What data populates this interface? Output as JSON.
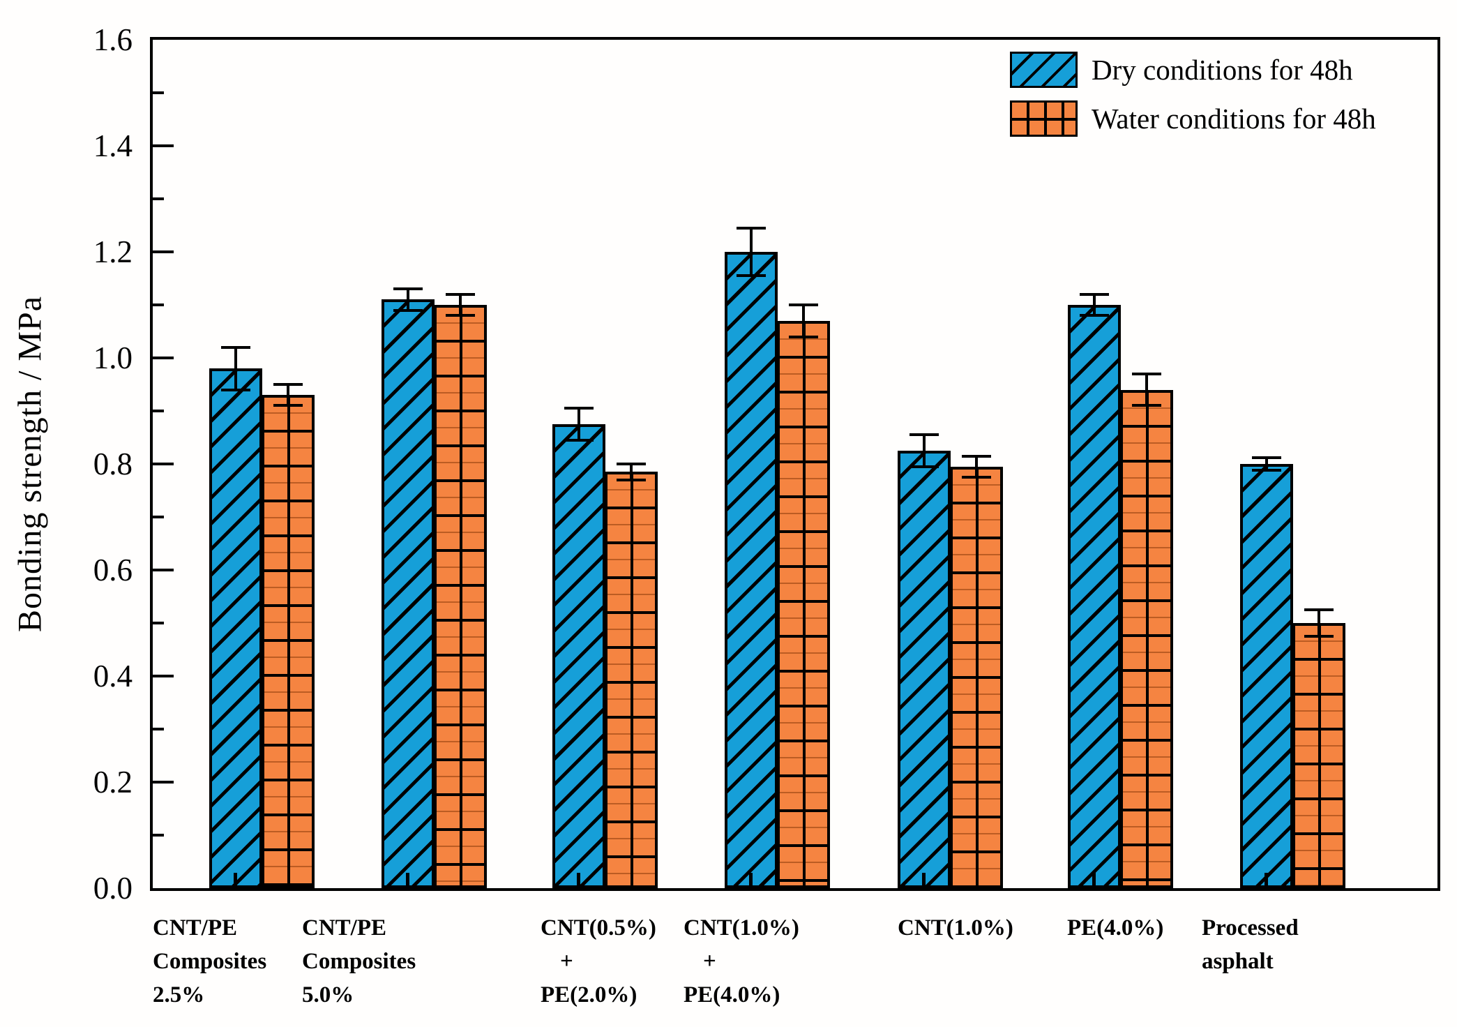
{
  "figure": {
    "ylabel": "Bonding strength / MPa",
    "background": "#ffffff",
    "axis_color": "#000000"
  },
  "chart_data": {
    "type": "bar",
    "title": "",
    "xlabel": "",
    "ylabel": "Bonding strength / MPa",
    "ylim": [
      0,
      1.6
    ],
    "ytick_interval": 0.2,
    "minor_tick_interval": 0.1,
    "yticks": [
      "0.0",
      "0.2",
      "0.4",
      "0.6",
      "0.8",
      "1.0",
      "1.2",
      "1.4",
      "1.6"
    ],
    "grid": false,
    "legend_position": "upper right",
    "error_bars": true,
    "categories": [
      [
        "CNT/PE",
        "Composites",
        "2.5%"
      ],
      [
        "CNT/PE",
        "Composites",
        "5.0%"
      ],
      [
        "CNT(0.5%)",
        "+",
        "PE(2.0%)"
      ],
      [
        "CNT(1.0%)",
        "+",
        "PE(4.0%)"
      ],
      [
        "CNT(1.0%)"
      ],
      [
        "PE(4.0%)"
      ],
      [
        "Processed",
        "asphalt"
      ]
    ],
    "series": [
      {
        "name": "Dry conditions for 48h",
        "color": "#169fd8",
        "hatch": "diagonal",
        "values": [
          0.98,
          1.11,
          0.875,
          1.2,
          0.825,
          1.1,
          0.8
        ],
        "errors": [
          0.04,
          0.02,
          0.03,
          0.045,
          0.03,
          0.02,
          0.012
        ]
      },
      {
        "name": "Water conditions for 48h",
        "color": "#f58441",
        "hatch": "grid",
        "values": [
          0.93,
          1.1,
          0.785,
          1.07,
          0.795,
          0.94,
          0.5
        ],
        "errors": [
          0.02,
          0.02,
          0.015,
          0.03,
          0.02,
          0.03,
          0.025
        ]
      }
    ]
  }
}
